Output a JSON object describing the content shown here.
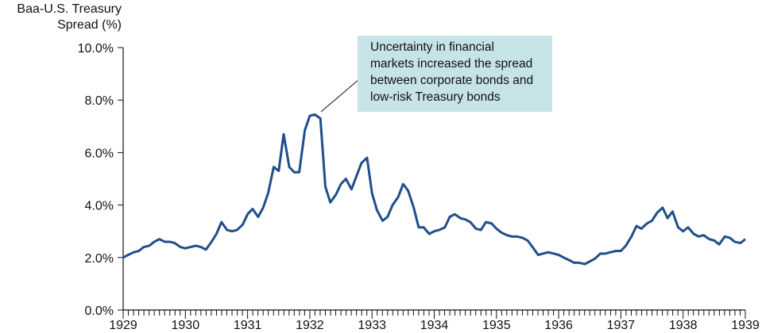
{
  "chart_data": {
    "type": "line",
    "y_label": "Baa-U.S. Treasury Spread (%)",
    "annotation": [
      "Uncertainty in financial",
      "markets increased the spread",
      "between corporate bonds and",
      "low-risk Treasury bonds"
    ],
    "x": [
      1929,
      1929.08,
      1929.17,
      1929.25,
      1929.33,
      1929.42,
      1929.5,
      1929.58,
      1929.67,
      1929.75,
      1929.83,
      1929.92,
      1930,
      1930.08,
      1930.17,
      1930.25,
      1930.33,
      1930.42,
      1930.5,
      1930.58,
      1930.67,
      1930.75,
      1930.83,
      1930.92,
      1931,
      1931.08,
      1931.17,
      1931.25,
      1931.33,
      1931.42,
      1931.5,
      1931.58,
      1931.67,
      1931.75,
      1931.83,
      1931.92,
      1932,
      1932.08,
      1932.17,
      1932.25,
      1932.33,
      1932.42,
      1932.5,
      1932.58,
      1932.67,
      1932.75,
      1932.83,
      1932.92,
      1933,
      1933.08,
      1933.17,
      1933.25,
      1933.33,
      1933.42,
      1933.5,
      1933.58,
      1933.67,
      1933.75,
      1933.83,
      1933.92,
      1934,
      1934.08,
      1934.17,
      1934.25,
      1934.33,
      1934.42,
      1934.5,
      1934.58,
      1934.67,
      1934.75,
      1934.83,
      1934.92,
      1935,
      1935.08,
      1935.17,
      1935.25,
      1935.33,
      1935.42,
      1935.5,
      1935.58,
      1935.67,
      1935.75,
      1935.83,
      1935.92,
      1936,
      1936.08,
      1936.17,
      1936.25,
      1936.33,
      1936.42,
      1936.5,
      1936.58,
      1936.67,
      1936.75,
      1936.83,
      1936.92,
      1937,
      1937.08,
      1937.17,
      1937.25,
      1937.33,
      1937.42,
      1937.5,
      1937.58,
      1937.67,
      1937.75,
      1937.83,
      1937.92,
      1938,
      1938.08,
      1938.17,
      1938.25,
      1938.33,
      1938.42,
      1938.5,
      1938.58,
      1938.67,
      1938.75,
      1938.83,
      1938.92,
      1939
    ],
    "series": [
      {
        "color": "#1f4e8c",
        "values": [
          2.0,
          2.1,
          2.2,
          2.25,
          2.4,
          2.45,
          2.6,
          2.7,
          2.6,
          2.6,
          2.55,
          2.4,
          2.35,
          2.4,
          2.45,
          2.4,
          2.3,
          2.6,
          2.9,
          3.35,
          3.05,
          3.0,
          3.05,
          3.25,
          3.65,
          3.85,
          3.55,
          3.9,
          4.45,
          5.45,
          5.3,
          6.7,
          5.45,
          5.25,
          5.25,
          6.85,
          7.4,
          7.45,
          7.3,
          4.7,
          4.1,
          4.4,
          4.8,
          5.0,
          4.6,
          5.1,
          5.6,
          5.8,
          4.45,
          3.8,
          3.4,
          3.55,
          4.0,
          4.3,
          4.8,
          4.55,
          3.9,
          3.15,
          3.15,
          2.9,
          3.0,
          3.05,
          3.15,
          3.55,
          3.65,
          3.5,
          3.45,
          3.35,
          3.1,
          3.05,
          3.35,
          3.3,
          3.1,
          2.95,
          2.85,
          2.8,
          2.8,
          2.75,
          2.65,
          2.4,
          2.1,
          2.15,
          2.2,
          2.15,
          2.1,
          2.0,
          1.9,
          1.8,
          1.8,
          1.75,
          1.85,
          1.95,
          2.15,
          2.15,
          2.2,
          2.25,
          2.25,
          2.45,
          2.8,
          3.2,
          3.1,
          3.3,
          3.4,
          3.7,
          3.9,
          3.5,
          3.75,
          3.15,
          3.0,
          3.15,
          2.9,
          2.8,
          2.85,
          2.7,
          2.65,
          2.5,
          2.8,
          2.75,
          2.6,
          2.55,
          2.7
        ]
      }
    ],
    "xlim": [
      1929,
      1939
    ],
    "xticks": [
      1929,
      1930,
      1931,
      1932,
      1933,
      1934,
      1935,
      1936,
      1937,
      1938,
      1939
    ],
    "ylim": [
      0,
      10
    ],
    "yticks": [
      {
        "value": 0,
        "label": "0.0%"
      },
      {
        "value": 2,
        "label": "2.0%"
      },
      {
        "value": 4,
        "label": "4.0%"
      },
      {
        "value": 6,
        "label": "6.0%"
      },
      {
        "value": 8,
        "label": "8.0%"
      },
      {
        "value": 10,
        "label": "10.0%"
      }
    ]
  }
}
